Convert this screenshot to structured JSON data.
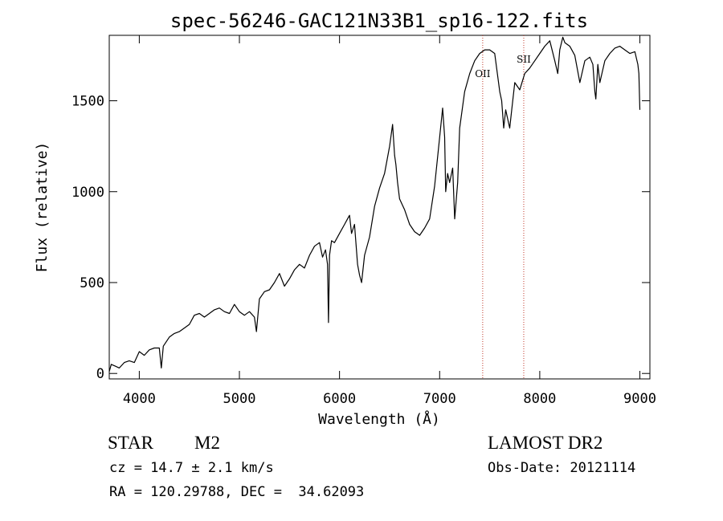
{
  "chart_data": {
    "type": "line",
    "title": "spec-56246-GAC121N33B1_sp16-122.fits",
    "xlabel": "Wavelength (Å)",
    "ylabel": "Flux (relative)",
    "xlim": [
      3700,
      9100
    ],
    "ylim": [
      -30,
      1860
    ],
    "xticks": [
      4000,
      5000,
      6000,
      7000,
      8000,
      9000
    ],
    "yticks": [
      0,
      500,
      1000,
      1500
    ],
    "grid": false,
    "series": [
      {
        "color": "#000000",
        "x": [
          3700,
          3720,
          3760,
          3800,
          3850,
          3900,
          3950,
          4000,
          4050,
          4100,
          4150,
          4200,
          4220,
          4240,
          4300,
          4350,
          4400,
          4450,
          4500,
          4550,
          4600,
          4650,
          4700,
          4750,
          4800,
          4850,
          4900,
          4950,
          5000,
          5050,
          5100,
          5150,
          5170,
          5200,
          5250,
          5300,
          5350,
          5400,
          5450,
          5500,
          5550,
          5600,
          5650,
          5700,
          5750,
          5800,
          5830,
          5860,
          5880,
          5890,
          5900,
          5920,
          5950,
          6000,
          6050,
          6080,
          6100,
          6120,
          6150,
          6180,
          6200,
          6220,
          6250,
          6300,
          6350,
          6400,
          6450,
          6500,
          6530,
          6550,
          6563,
          6580,
          6600,
          6650,
          6700,
          6750,
          6800,
          6850,
          6900,
          6950,
          7000,
          7030,
          7050,
          7060,
          7080,
          7100,
          7130,
          7150,
          7180,
          7200,
          7250,
          7300,
          7350,
          7400,
          7450,
          7500,
          7550,
          7600,
          7620,
          7640,
          7660,
          7680,
          7700,
          7720,
          7750,
          7800,
          7850,
          7900,
          7950,
          8000,
          8050,
          8100,
          8150,
          8180,
          8200,
          8230,
          8250,
          8300,
          8350,
          8400,
          8450,
          8500,
          8530,
          8550,
          8560,
          8580,
          8600,
          8650,
          8700,
          8750,
          8800,
          8850,
          8900,
          8950,
          8980,
          8990,
          9000
        ],
        "values": [
          10,
          50,
          40,
          30,
          60,
          70,
          60,
          120,
          100,
          130,
          140,
          140,
          30,
          150,
          200,
          220,
          230,
          250,
          270,
          320,
          330,
          310,
          330,
          350,
          360,
          340,
          330,
          380,
          340,
          320,
          340,
          310,
          230,
          410,
          450,
          460,
          500,
          550,
          480,
          520,
          570,
          600,
          580,
          650,
          700,
          720,
          640,
          680,
          600,
          280,
          650,
          730,
          720,
          770,
          820,
          850,
          870,
          770,
          820,
          600,
          540,
          500,
          650,
          750,
          920,
          1020,
          1100,
          1250,
          1370,
          1200,
          1150,
          1050,
          960,
          900,
          820,
          780,
          760,
          800,
          850,
          1030,
          1300,
          1460,
          1300,
          1000,
          1100,
          1050,
          1130,
          850,
          1050,
          1350,
          1550,
          1650,
          1720,
          1760,
          1780,
          1780,
          1760,
          1550,
          1500,
          1350,
          1450,
          1400,
          1350,
          1450,
          1600,
          1560,
          1650,
          1680,
          1720,
          1760,
          1800,
          1830,
          1720,
          1650,
          1780,
          1850,
          1820,
          1800,
          1750,
          1600,
          1720,
          1740,
          1700,
          1550,
          1510,
          1700,
          1600,
          1720,
          1760,
          1790,
          1800,
          1780,
          1760,
          1770,
          1700,
          1650,
          1450
        ]
      }
    ],
    "annotations": [
      {
        "label": "OII",
        "x": 7430
      },
      {
        "label": "SII",
        "x": 7840
      }
    ]
  },
  "footer": {
    "object_type": "STAR",
    "subclass": "M2",
    "survey": "LAMOST DR2",
    "redshift": "cz = 14.7 ± 2.1 km/s",
    "obs_date": "Obs-Date: 20121114",
    "coords": "RA = 120.29788, DEC =  34.62093"
  }
}
